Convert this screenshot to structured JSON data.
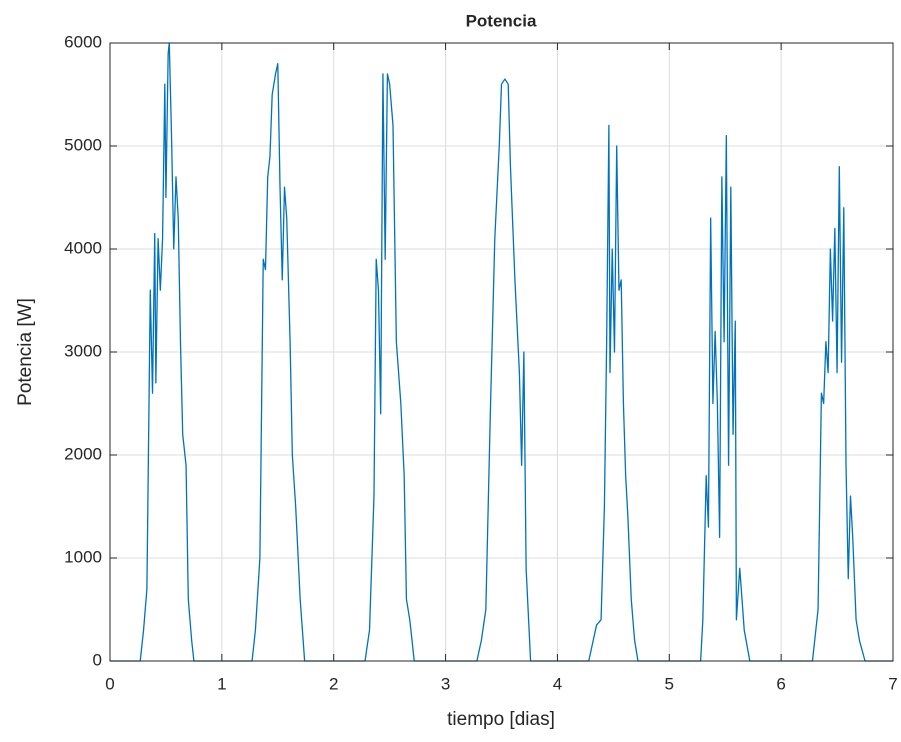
{
  "chart_data": {
    "type": "line",
    "title": "Potencia",
    "xlabel": "tiempo [dias]",
    "ylabel": "Potencia [W]",
    "color": "#0072bd",
    "grid": true,
    "xlim": [
      0,
      7
    ],
    "xticks": [
      0,
      1,
      2,
      3,
      4,
      5,
      6,
      7
    ],
    "ylim": [
      0,
      6000
    ],
    "yticks": [
      0,
      1000,
      2000,
      3000,
      4000,
      5000,
      6000
    ],
    "x": [
      0,
      0.27,
      0.3,
      0.33,
      0.36,
      0.38,
      0.4,
      0.41,
      0.43,
      0.45,
      0.47,
      0.49,
      0.5,
      0.52,
      0.53,
      0.55,
      0.57,
      0.59,
      0.61,
      0.63,
      0.65,
      0.68,
      0.7,
      0.73,
      0.75,
      1.27,
      1.3,
      1.34,
      1.37,
      1.39,
      1.41,
      1.43,
      1.45,
      1.48,
      1.5,
      1.52,
      1.54,
      1.56,
      1.58,
      1.61,
      1.63,
      1.66,
      1.7,
      1.74,
      2.28,
      2.32,
      2.36,
      2.38,
      2.4,
      2.42,
      2.44,
      2.46,
      2.48,
      2.5,
      2.53,
      2.56,
      2.6,
      2.63,
      2.65,
      2.68,
      2.72,
      3.28,
      3.32,
      3.36,
      3.4,
      3.44,
      3.48,
      3.5,
      3.53,
      3.56,
      3.58,
      3.62,
      3.66,
      3.68,
      3.7,
      3.72,
      3.76,
      4.28,
      4.32,
      4.35,
      4.39,
      4.42,
      4.44,
      4.46,
      4.47,
      4.49,
      4.51,
      4.53,
      4.55,
      4.57,
      4.59,
      4.61,
      4.63,
      4.66,
      4.69,
      4.72,
      5.28,
      5.3,
      5.33,
      5.35,
      5.37,
      5.39,
      5.41,
      5.43,
      5.45,
      5.47,
      5.49,
      5.51,
      5.53,
      5.55,
      5.57,
      5.59,
      5.6,
      5.63,
      5.67,
      5.72,
      6.28,
      6.3,
      6.33,
      6.36,
      6.38,
      6.4,
      6.42,
      6.44,
      6.46,
      6.48,
      6.5,
      6.52,
      6.54,
      6.56,
      6.58,
      6.6,
      6.62,
      6.64,
      6.67,
      6.7,
      6.75,
      7
    ],
    "values": [
      0,
      0,
      300,
      700,
      3600,
      2600,
      4150,
      2700,
      4100,
      3600,
      4100,
      5600,
      4500,
      5900,
      6000,
      5100,
      4000,
      4700,
      4300,
      3100,
      2200,
      1900,
      600,
      200,
      0,
      0,
      300,
      1000,
      3900,
      3800,
      4700,
      4900,
      5500,
      5700,
      5800,
      4600,
      3700,
      4600,
      4300,
      3100,
      2000,
      1500,
      600,
      0,
      0,
      300,
      1600,
      3900,
      3600,
      2400,
      5700,
      3900,
      5700,
      5600,
      5200,
      3100,
      2500,
      1800,
      600,
      400,
      0,
      0,
      200,
      500,
      2400,
      4100,
      5000,
      5600,
      5650,
      5600,
      4800,
      3700,
      2800,
      1900,
      3000,
      900,
      0,
      0,
      200,
      350,
      400,
      1500,
      3100,
      5200,
      2800,
      4000,
      3000,
      5000,
      3600,
      3700,
      2500,
      1800,
      1400,
      600,
      200,
      0,
      0,
      400,
      1800,
      1300,
      4300,
      2500,
      3200,
      2500,
      1200,
      4700,
      3100,
      5100,
      1900,
      4600,
      2200,
      3300,
      400,
      900,
      300,
      0,
      0,
      200,
      500,
      2600,
      2500,
      3100,
      2800,
      4000,
      3300,
      4200,
      2800,
      4800,
      2900,
      4400,
      1900,
      800,
      1600,
      1200,
      400,
      200,
      0,
      0
    ]
  }
}
